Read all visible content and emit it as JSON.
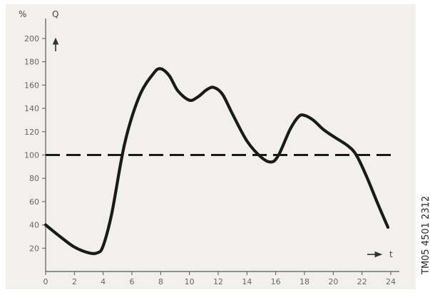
{
  "chart_data": {
    "type": "line",
    "title": "",
    "ylabel": "Q",
    "yunit": "%",
    "xlabel": "t",
    "xlim": [
      0,
      24
    ],
    "ylim": [
      0,
      210
    ],
    "x_ticks": [
      "0",
      "2",
      "4",
      "6",
      "8",
      "10",
      "12",
      "14",
      "16",
      "18",
      "20",
      "22",
      "24"
    ],
    "y_ticks": [
      "20",
      "40",
      "60",
      "80",
      "100",
      "120",
      "140",
      "160",
      "180",
      "200"
    ],
    "grid": false,
    "series": [
      {
        "style": "solid",
        "x": [
          0,
          1,
          2,
          3,
          3.6,
          4,
          4.6,
          5.5,
          6.5,
          7.5,
          8,
          8.6,
          9.2,
          10,
          10.6,
          11.2,
          11.7,
          12.3,
          13,
          14,
          15,
          15.7,
          16.2,
          17,
          17.6,
          18,
          18.6,
          19.3,
          20,
          21,
          21.6,
          22.3,
          23.1,
          23.8
        ],
        "y": [
          40,
          30,
          21,
          16,
          16,
          22,
          50,
          110,
          150,
          170,
          174,
          168,
          155,
          147,
          150,
          156,
          158,
          152,
          135,
          112,
          98,
          94,
          100,
          122,
          133,
          134,
          130,
          122,
          116,
          108,
          100,
          82,
          58,
          38
        ]
      },
      {
        "style": "dashed",
        "x": [
          0,
          24
        ],
        "y": [
          100,
          100
        ]
      }
    ]
  },
  "figure_code": "TM05 4501 2312",
  "colors": {
    "curve": "#1a1a1a",
    "axes": "#555555",
    "paper": "#f1f0ec"
  }
}
